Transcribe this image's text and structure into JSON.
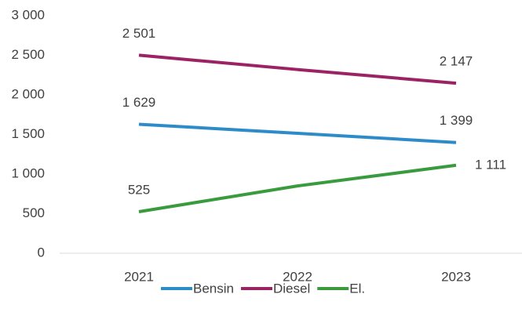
{
  "chart_data": {
    "type": "line",
    "categories": [
      "2021",
      "2022",
      "2023"
    ],
    "series": [
      {
        "name": "Bensin",
        "color": "#2e8bc9",
        "values": [
          1629,
          1515,
          1399
        ],
        "value_labels": [
          "1 629",
          null,
          "1 399"
        ]
      },
      {
        "name": "Diesel",
        "color": "#9b2364",
        "values": [
          2501,
          2320,
          2147
        ],
        "value_labels": [
          "2 501",
          null,
          "2 147"
        ]
      },
      {
        "name": "El.",
        "color": "#3a9b3e",
        "values": [
          525,
          850,
          1111
        ],
        "value_labels": [
          "525",
          null,
          "1 111"
        ]
      }
    ],
    "ylim": [
      0,
      3000
    ],
    "yticks": [
      0,
      {
        "value": 500,
        "label": "500"
      },
      {
        "value": 1000,
        "label": "1 000"
      },
      {
        "value": 1500,
        "label": "1 500"
      },
      {
        "value": 2000,
        "label": "2 000"
      },
      {
        "value": 2500,
        "label": "2 500"
      },
      {
        "value": 3000,
        "label": "3 000"
      }
    ],
    "grid": false,
    "legend": "bottom"
  }
}
